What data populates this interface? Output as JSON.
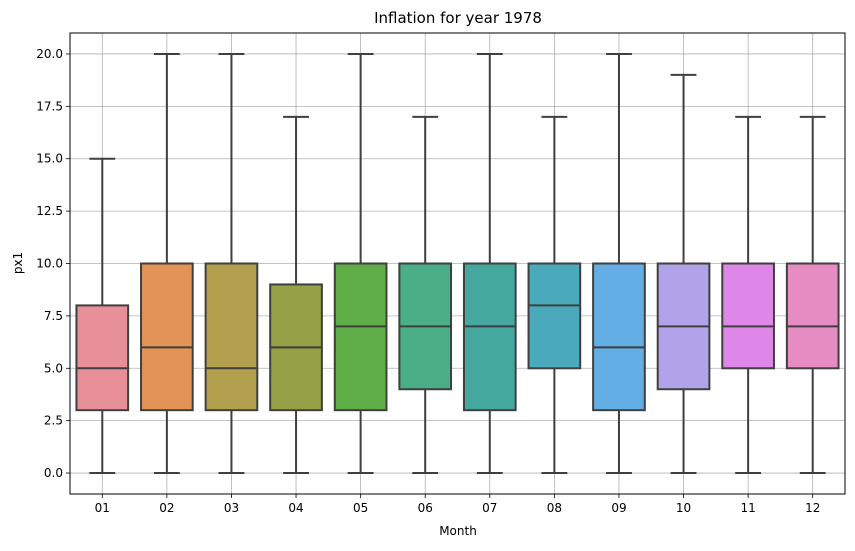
{
  "chart_data": {
    "type": "box",
    "title": "Inflation for year 1978",
    "xlabel": "Month",
    "ylabel": "px1",
    "ylim": [
      -1.0,
      21.0
    ],
    "yticks": [
      "0.0",
      "2.5",
      "5.0",
      "7.5",
      "10.0",
      "12.5",
      "15.0",
      "17.5",
      "20.0"
    ],
    "ytick_values": [
      0,
      2.5,
      5,
      7.5,
      10,
      12.5,
      15,
      17.5,
      20
    ],
    "grid": true,
    "categories": [
      "01",
      "02",
      "03",
      "04",
      "05",
      "06",
      "07",
      "08",
      "09",
      "10",
      "11",
      "12"
    ],
    "boxes": [
      {
        "min": 0,
        "q1": 3,
        "median": 5,
        "q3": 8,
        "max": 15,
        "color": "#e8909a"
      },
      {
        "min": 0,
        "q1": 3,
        "median": 6,
        "q3": 10,
        "max": 20,
        "color": "#e39356"
      },
      {
        "min": 0,
        "q1": 3,
        "median": 5,
        "q3": 10,
        "max": 20,
        "color": "#b3a04f"
      },
      {
        "min": 0,
        "q1": 3,
        "median": 6,
        "q3": 9,
        "max": 17,
        "color": "#94a146"
      },
      {
        "min": 0,
        "q1": 3,
        "median": 7,
        "q3": 10,
        "max": 20,
        "color": "#5fae48"
      },
      {
        "min": 0,
        "q1": 4,
        "median": 7,
        "q3": 10,
        "max": 17,
        "color": "#4aae86"
      },
      {
        "min": 0,
        "q1": 3,
        "median": 7,
        "q3": 10,
        "max": 20,
        "color": "#44a89f"
      },
      {
        "min": 0,
        "q1": 5,
        "median": 8,
        "q3": 10,
        "max": 17,
        "color": "#4aa9bb"
      },
      {
        "min": 0,
        "q1": 3,
        "median": 6,
        "q3": 10,
        "max": 20,
        "color": "#64aee6"
      },
      {
        "min": 0,
        "q1": 4,
        "median": 7,
        "q3": 10,
        "max": 19,
        "color": "#b1a3ea"
      },
      {
        "min": 0,
        "q1": 5,
        "median": 7,
        "q3": 10,
        "max": 17,
        "color": "#df87e8"
      },
      {
        "min": 0,
        "q1": 5,
        "median": 7,
        "q3": 10,
        "max": 17,
        "color": "#e68cc2"
      }
    ]
  }
}
